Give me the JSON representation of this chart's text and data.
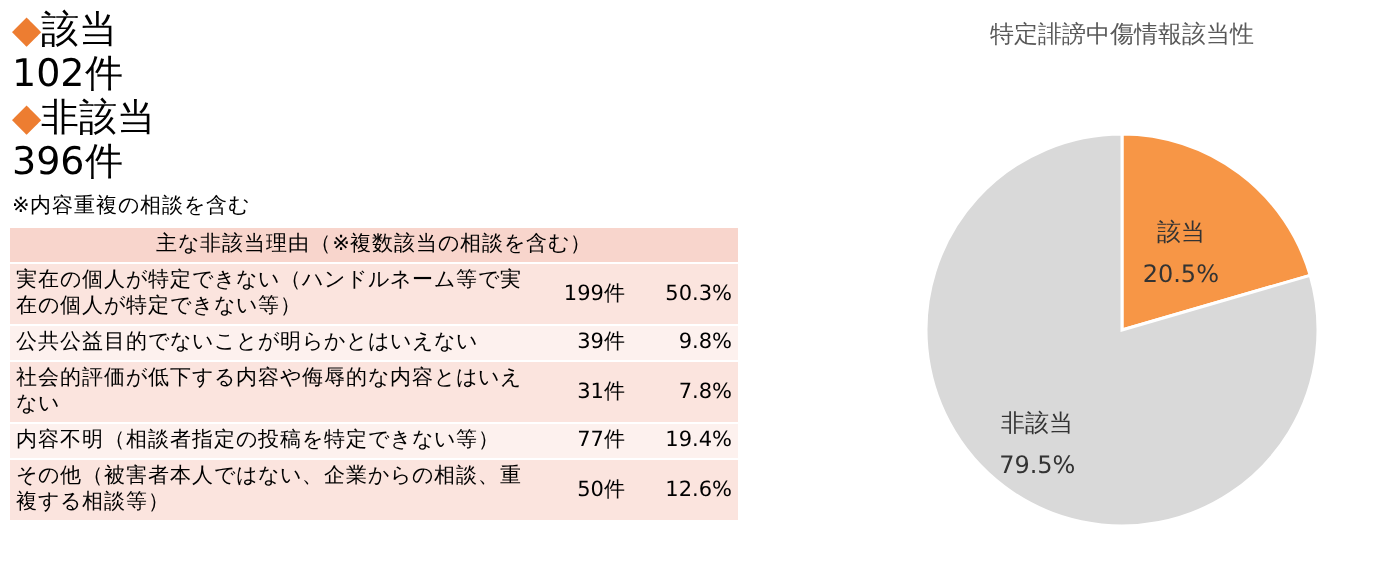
{
  "chart_data": [
    {
      "type": "other",
      "annotations": [
        "◆該当",
        "102件",
        "◆非該当",
        "396件",
        "※内容重複の相談を含む"
      ],
      "title": "主な非該当理由（※複数該当の相談を含む）",
      "categories": [
        "実在の個人が特定できない（ハンドルネーム等で実在の個人が特定できない等）",
        "公共公益目的でないことが明らかとはいえない",
        "社会的評価が低下する内容や侮辱的な内容とはいえない",
        "内容不明（相談者指定の投稿を特定できない等）",
        "その他（被害者本人ではない、企業からの相談、重複する相談等）"
      ],
      "colors": [
        "#fbe4de",
        "#fdf1ee",
        "#fbe4de",
        "#fdf1ee",
        "#fbe4de"
      ],
      "series": [
        {
          "values": [
            199,
            39,
            31,
            77,
            50
          ],
          "value_labels": [
            "199件",
            "39件",
            "31件",
            "77件",
            "50件"
          ],
          "colors": [
            "#fbe4de",
            "#fdf1ee",
            "#fbe4de",
            "#fdf1ee",
            "#fbe4de"
          ]
        },
        {
          "values": [
            50.3,
            9.8,
            7.8,
            19.4,
            12.6
          ],
          "value_labels": [
            "50.3%",
            "9.8%",
            "7.8%",
            "19.4%",
            "12.6%"
          ],
          "colors": [
            "#fbe4de",
            "#fdf1ee",
            "#fbe4de",
            "#fdf1ee",
            "#fbe4de"
          ]
        }
      ]
    },
    {
      "type": "pie",
      "title": "特定誹謗中傷情報該当性",
      "categories": [
        "該当",
        "非該当"
      ],
      "values": [
        20.5,
        79.5
      ],
      "colors": [
        "#f79646",
        "#d9d9d9"
      ],
      "value_labels": [
        "20.5%",
        "79.5%"
      ]
    }
  ]
}
